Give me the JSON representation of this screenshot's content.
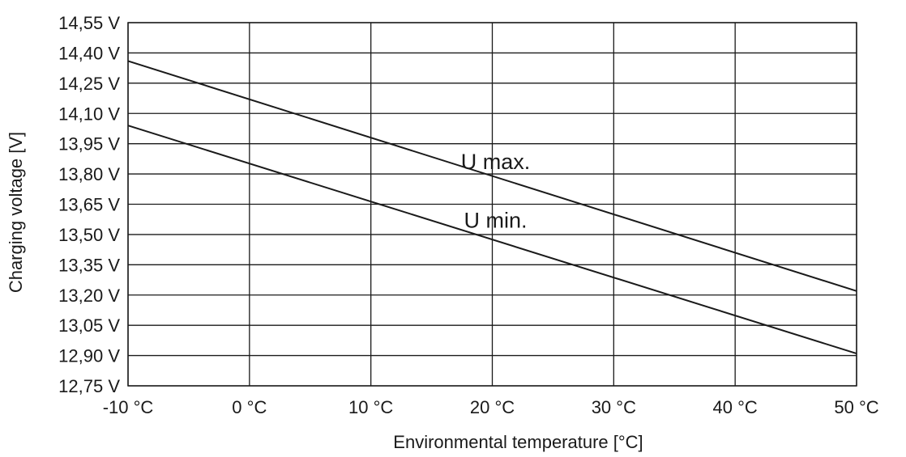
{
  "chart_data": {
    "type": "line",
    "title": "",
    "xlabel": "Environmental temperature  [°C]",
    "ylabel": "Charging voltage [V]",
    "xlim": [
      -10,
      50
    ],
    "ylim": [
      12.75,
      14.55
    ],
    "x_ticks": [
      -10,
      0,
      10,
      20,
      30,
      40,
      50
    ],
    "x_tick_labels": [
      "-10 °C",
      "0 °C",
      "10 °C",
      "20 °C",
      "30 °C",
      "40 °C",
      "50 °C"
    ],
    "y_ticks": [
      14.55,
      14.4,
      14.25,
      14.1,
      13.95,
      13.8,
      13.65,
      13.5,
      13.35,
      13.2,
      13.05,
      12.9,
      12.75
    ],
    "y_tick_labels": [
      "14,55 V",
      "14,40 V",
      "14,25 V",
      "14,10 V",
      "13,95 V",
      "13,80 V",
      "13,65 V",
      "13,50 V",
      "13,35 V",
      "13,20 V",
      "13,05 V",
      "12,90 V",
      "12,75 V"
    ],
    "grid": true,
    "legend": "none",
    "series": [
      {
        "name": "U max.",
        "x": [
          -10,
          50
        ],
        "y": [
          14.36,
          13.22
        ],
        "label_at": [
          20,
          13.8
        ]
      },
      {
        "name": "U min.",
        "x": [
          -10,
          50
        ],
        "y": [
          14.04,
          12.91
        ],
        "label_at": [
          20,
          13.51
        ]
      }
    ]
  }
}
